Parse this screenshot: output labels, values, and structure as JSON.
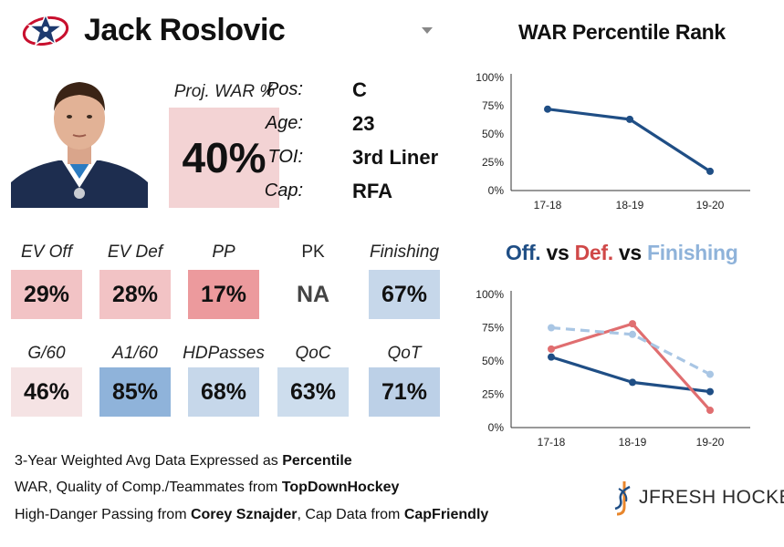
{
  "header": {
    "player_name": "Jack Roslovic",
    "team_logo_icon": "blue-jackets-logo-icon"
  },
  "summary": {
    "proj_war_label": "Proj. WAR %",
    "proj_war_value": "40%",
    "proj_war_color": "#f3d3d4"
  },
  "info": [
    {
      "label": "Pos:",
      "value": "C"
    },
    {
      "label": "Age:",
      "value": "23"
    },
    {
      "label": "TOI:",
      "value": "3rd Liner"
    },
    {
      "label": "Cap:",
      "value": "RFA"
    }
  ],
  "metrics_row1": [
    {
      "label": "EV Off",
      "value": "29%",
      "color": "#f2c3c5"
    },
    {
      "label": "EV Def",
      "value": "28%",
      "color": "#f2c3c5"
    },
    {
      "label": "PP",
      "value": "17%",
      "color": "#ec9a9d"
    },
    {
      "label": "PK",
      "value": "NA",
      "color": "#ffffff"
    },
    {
      "label": "Finishing",
      "value": "67%",
      "color": "#c6d7ea"
    }
  ],
  "metrics_row2": [
    {
      "label": "G/60",
      "value": "46%",
      "color": "#f5e3e4"
    },
    {
      "label": "A1/60",
      "value": "85%",
      "color": "#8fb3da"
    },
    {
      "label": "HDPasses",
      "value": "68%",
      "color": "#c6d7ea"
    },
    {
      "label": "QoC",
      "value": "63%",
      "color": "#cddded"
    },
    {
      "label": "QoT",
      "value": "71%",
      "color": "#bcd0e7"
    }
  ],
  "footnotes": [
    {
      "pre": "3-Year Weighted Avg Data Expressed as ",
      "bold1": "Percentile",
      "mid": "",
      "bold2": ""
    },
    {
      "pre": "WAR, Quality of Comp./Teammates from ",
      "bold1": "TopDownHockey",
      "mid": "",
      "bold2": ""
    },
    {
      "pre": "High-Danger Passing from ",
      "bold1": "Corey Sznajder",
      "mid": ", Cap Data from ",
      "bold2": "CapFriendly"
    }
  ],
  "brand": {
    "text": "JFRESH HOCKEY"
  },
  "chart_data": [
    {
      "type": "line",
      "title": "WAR Percentile Rank",
      "x": [
        "17-18",
        "18-19",
        "19-20"
      ],
      "y_ticks": [
        "0%",
        "25%",
        "50%",
        "75%",
        "100%"
      ],
      "ylim": [
        0,
        100
      ],
      "series": [
        {
          "values": [
            72,
            63,
            17
          ],
          "color": "#1f4e85",
          "dashed": false
        }
      ]
    },
    {
      "type": "line",
      "title_parts": [
        {
          "text": "Off.",
          "color": "#1f4e85"
        },
        {
          "text": " vs ",
          "color": "#111111"
        },
        {
          "text": "Def.",
          "color": "#d04848"
        },
        {
          "text": " vs ",
          "color": "#111111"
        },
        {
          "text": "Finishing",
          "color": "#8fb3da"
        }
      ],
      "x": [
        "17-18",
        "18-19",
        "19-20"
      ],
      "y_ticks": [
        "0%",
        "25%",
        "50%",
        "75%",
        "100%"
      ],
      "ylim": [
        0,
        100
      ],
      "series": [
        {
          "name": "Off.",
          "values": [
            53,
            34,
            27
          ],
          "color": "#1f4e85",
          "dashed": false
        },
        {
          "name": "Def.",
          "values": [
            59,
            78,
            13
          ],
          "color": "#e06e70",
          "dashed": false
        },
        {
          "name": "Finishing",
          "values": [
            75,
            70,
            40
          ],
          "color": "#a9c6e4",
          "dashed": true
        }
      ]
    }
  ]
}
